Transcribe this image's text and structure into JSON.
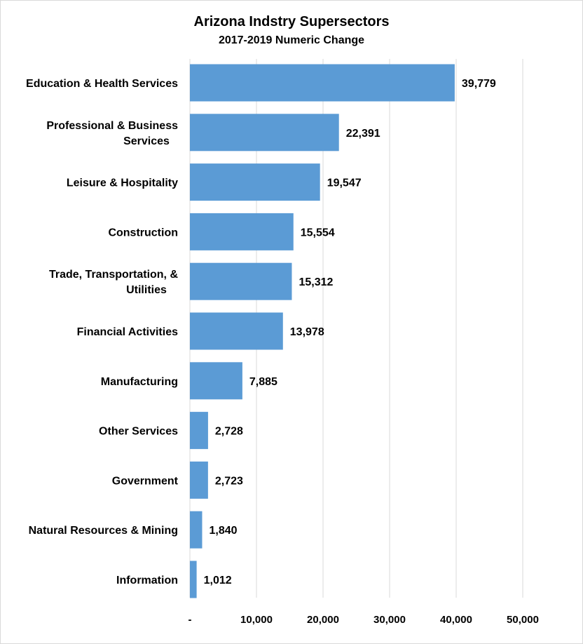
{
  "chart_data": {
    "type": "bar",
    "orientation": "horizontal",
    "title": "Arizona Indstry Supersectors",
    "subtitle": "2017-2019 Numeric Change",
    "categories": [
      [
        "Education & Health Services"
      ],
      [
        "Professional & Business",
        "Services"
      ],
      [
        "Leisure & Hospitality"
      ],
      [
        "Construction"
      ],
      [
        "Trade, Transportation, &",
        "Utilities"
      ],
      [
        "Financial Activities"
      ],
      [
        "Manufacturing"
      ],
      [
        "Other Services"
      ],
      [
        "Government"
      ],
      [
        "Natural Resources & Mining"
      ],
      [
        "Information"
      ]
    ],
    "values": [
      39779,
      22391,
      19547,
      15554,
      15312,
      13978,
      7885,
      2728,
      2723,
      1840,
      1012
    ],
    "value_labels": [
      "39,779",
      "22,391",
      "19,547",
      "15,554",
      "15,312",
      "13,978",
      "7,885",
      "2,728",
      "2,723",
      "1,840",
      "1,012"
    ],
    "xticks": [
      0,
      10000,
      20000,
      30000,
      40000,
      50000
    ],
    "xtick_labels": [
      "-",
      "10,000",
      "20,000",
      "30,000",
      "40,000",
      "50,000"
    ],
    "xlim": [
      0,
      50000
    ],
    "grid": true,
    "legend": "none",
    "bar_color": "#5b9bd5",
    "grid_color": "#d9d9d9"
  }
}
